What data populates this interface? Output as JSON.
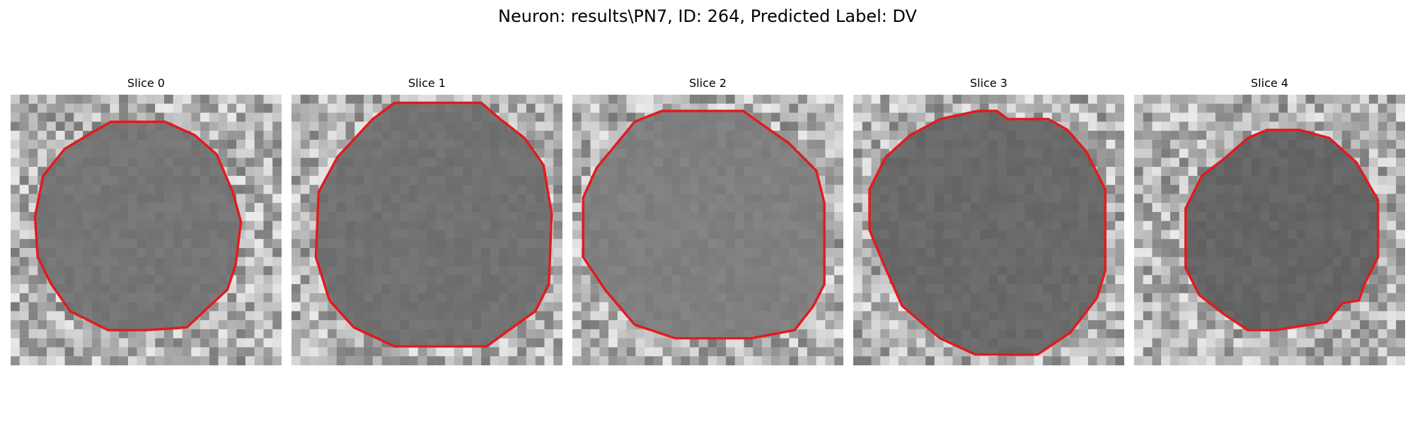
{
  "figure": {
    "title": "Neuron: results\\PN7, ID: 264, Predicted Label: DV"
  },
  "panels": [
    {
      "title": "Slice 0"
    },
    {
      "title": "Slice 1"
    },
    {
      "title": "Slice 2"
    },
    {
      "title": "Slice 3"
    },
    {
      "title": "Slice 4"
    }
  ],
  "colors": {
    "contour": "#e31a1c"
  }
}
